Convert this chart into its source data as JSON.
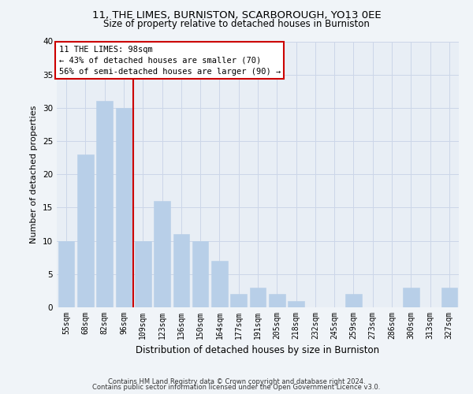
{
  "title1": "11, THE LIMES, BURNISTON, SCARBOROUGH, YO13 0EE",
  "title2": "Size of property relative to detached houses in Burniston",
  "xlabel": "Distribution of detached houses by size in Burniston",
  "ylabel": "Number of detached properties",
  "categories": [
    "55sqm",
    "68sqm",
    "82sqm",
    "96sqm",
    "109sqm",
    "123sqm",
    "136sqm",
    "150sqm",
    "164sqm",
    "177sqm",
    "191sqm",
    "205sqm",
    "218sqm",
    "232sqm",
    "245sqm",
    "259sqm",
    "273sqm",
    "286sqm",
    "300sqm",
    "313sqm",
    "327sqm"
  ],
  "values": [
    10,
    23,
    31,
    30,
    10,
    16,
    11,
    10,
    7,
    2,
    3,
    2,
    1,
    0,
    0,
    2,
    0,
    0,
    3,
    0,
    3
  ],
  "bar_color": "#b8cfe8",
  "bar_edgecolor": "#b8cfe8",
  "vline_x_index": 3,
  "vline_color": "#cc0000",
  "annotation_title": "11 THE LIMES: 98sqm",
  "annotation_line1": "← 43% of detached houses are smaller (70)",
  "annotation_line2": "56% of semi-detached houses are larger (90) →",
  "annotation_box_facecolor": "#ffffff",
  "annotation_box_edgecolor": "#cc0000",
  "ylim": [
    0,
    40
  ],
  "yticks": [
    0,
    5,
    10,
    15,
    20,
    25,
    30,
    35,
    40
  ],
  "grid_color": "#ccd6e8",
  "background_color": "#e8eef5",
  "fig_facecolor": "#f0f4f8",
  "title1_fontsize": 9.5,
  "title2_fontsize": 8.5,
  "ylabel_fontsize": 8,
  "xlabel_fontsize": 8.5,
  "tick_fontsize": 7,
  "annot_fontsize": 7.5,
  "footer1": "Contains HM Land Registry data © Crown copyright and database right 2024.",
  "footer2": "Contains public sector information licensed under the Open Government Licence v3.0.",
  "footer_fontsize": 6
}
